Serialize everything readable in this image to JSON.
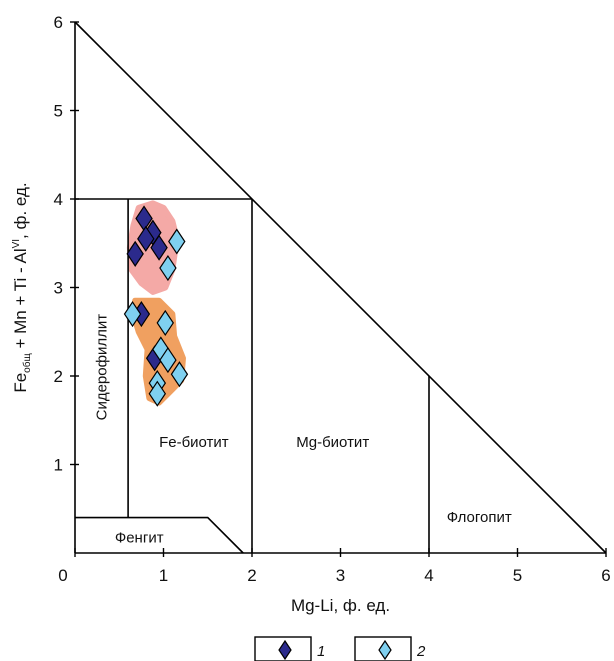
{
  "chart_data": {
    "type": "scatter",
    "title": "",
    "xlabel": "Mg-Li, ф. ед.",
    "ylabel": {
      "part1": "Fe",
      "sub": "общ",
      "part2": " + Mn + Ti - Al",
      "sup": "VI",
      "part3": ", ф. ед."
    },
    "xlim": [
      0,
      6
    ],
    "ylim": [
      0,
      6
    ],
    "xticks": [
      "0",
      "1",
      "2",
      "3",
      "4",
      "5",
      "6"
    ],
    "yticks": [
      "1",
      "2",
      "3",
      "4",
      "5",
      "6"
    ],
    "grid": false,
    "fields": {
      "siderophyllite": "Сидерофиллит",
      "fe_biotite": "Fe-биотит",
      "mg_biotite": "Mg-биотит",
      "phlogopite": "Флогопит",
      "phengite": "Фенгит"
    },
    "colors": {
      "series1": "#2b2a8c",
      "series2": "#7fd0f0",
      "upper_field_fill": "#f4a9a6",
      "lower_field_fill": "#f0a060"
    },
    "series": [
      {
        "name": "1",
        "marker": "diamond",
        "points": [
          {
            "x": 0.78,
            "y": 3.78
          },
          {
            "x": 0.88,
            "y": 3.62
          },
          {
            "x": 0.8,
            "y": 3.55
          },
          {
            "x": 0.95,
            "y": 3.45
          },
          {
            "x": 0.68,
            "y": 3.38
          },
          {
            "x": 0.75,
            "y": 2.7
          },
          {
            "x": 0.9,
            "y": 2.2
          }
        ]
      },
      {
        "name": "2",
        "marker": "diamond",
        "points": [
          {
            "x": 1.15,
            "y": 3.52
          },
          {
            "x": 1.05,
            "y": 3.22
          },
          {
            "x": 0.65,
            "y": 2.7
          },
          {
            "x": 1.02,
            "y": 2.6
          },
          {
            "x": 0.97,
            "y": 2.3
          },
          {
            "x": 1.05,
            "y": 2.18
          },
          {
            "x": 1.18,
            "y": 2.02
          },
          {
            "x": 0.93,
            "y": 1.92
          },
          {
            "x": 0.93,
            "y": 1.8
          }
        ]
      }
    ],
    "legend": {
      "placement": "bottom-center",
      "items": [
        "1",
        "2"
      ]
    }
  }
}
